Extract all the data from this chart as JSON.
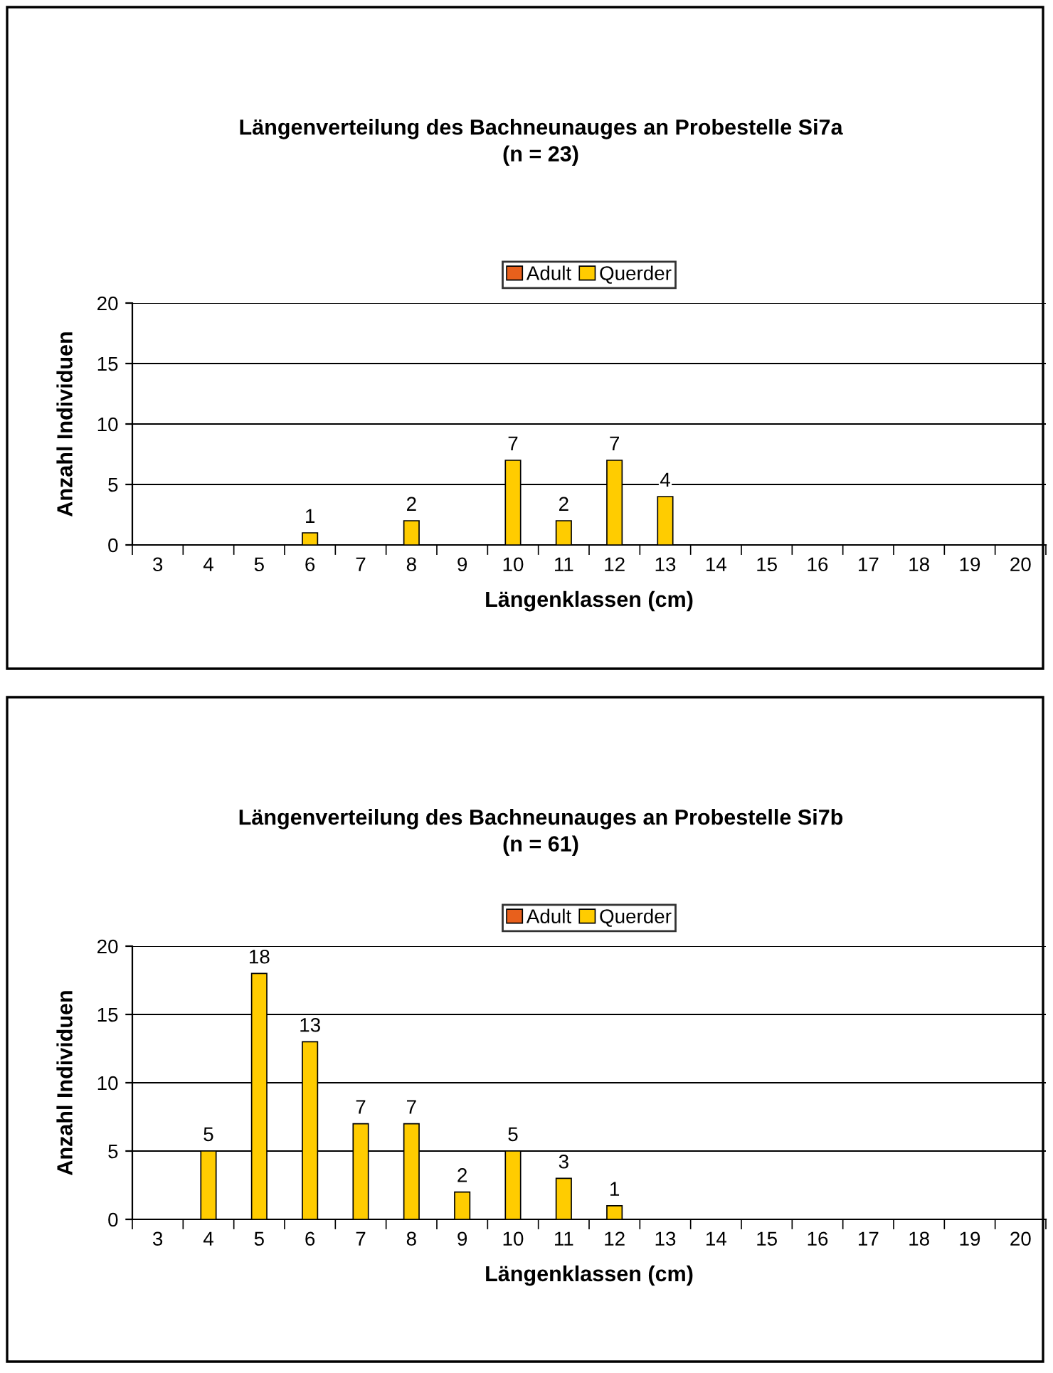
{
  "chart_data": [
    {
      "type": "bar",
      "title": "Längenverteilung des Bachneunauges an Probestelle Si7a\n(n = 23)",
      "xlabel": "Längenklassen (cm)",
      "ylabel": "Anzahl Individuen",
      "categories": [
        "3",
        "4",
        "5",
        "6",
        "7",
        "8",
        "9",
        "10",
        "11",
        "12",
        "13",
        "14",
        "15",
        "16",
        "17",
        "18",
        "19",
        "20"
      ],
      "series": [
        {
          "name": "Adult",
          "color": "#e8601c",
          "values": [
            null,
            null,
            null,
            null,
            null,
            null,
            null,
            null,
            null,
            null,
            null,
            null,
            null,
            null,
            null,
            null,
            null,
            null
          ]
        },
        {
          "name": "Querder",
          "color": "#ffcc00",
          "values": [
            null,
            null,
            null,
            1,
            null,
            2,
            null,
            7,
            2,
            7,
            4,
            null,
            null,
            null,
            null,
            null,
            null,
            null
          ],
          "value_labels": [
            null,
            null,
            null,
            "1",
            null,
            "2",
            null,
            "7",
            "2",
            "7",
            "4",
            null,
            null,
            null,
            null,
            null,
            null,
            null
          ]
        }
      ],
      "ylim": [
        0,
        20
      ],
      "yticks": [
        0,
        5,
        10,
        15,
        20
      ],
      "grid": "y",
      "legend": "top"
    },
    {
      "type": "bar",
      "title": "Längenverteilung des Bachneunauges an Probestelle Si7b\n(n = 61)",
      "xlabel": "Längenklassen (cm)",
      "ylabel": "Anzahl Individuen",
      "categories": [
        "3",
        "4",
        "5",
        "6",
        "7",
        "8",
        "9",
        "10",
        "11",
        "12",
        "13",
        "14",
        "15",
        "16",
        "17",
        "18",
        "19",
        "20"
      ],
      "series": [
        {
          "name": "Adult",
          "color": "#e8601c",
          "values": [
            null,
            null,
            null,
            null,
            null,
            null,
            null,
            null,
            null,
            null,
            null,
            null,
            null,
            null,
            null,
            null,
            null,
            null
          ]
        },
        {
          "name": "Querder",
          "color": "#ffcc00",
          "values": [
            null,
            5,
            18,
            13,
            7,
            7,
            2,
            5,
            3,
            1,
            null,
            null,
            null,
            null,
            null,
            null,
            null,
            null
          ],
          "value_labels": [
            null,
            "5",
            "18",
            "13",
            "7",
            "7",
            "2",
            "5",
            "3",
            "1",
            null,
            null,
            null,
            null,
            null,
            null,
            null,
            null
          ]
        }
      ],
      "ylim": [
        0,
        20
      ],
      "yticks": [
        0,
        5,
        10,
        15,
        20
      ],
      "grid": "y",
      "legend": "top"
    }
  ]
}
